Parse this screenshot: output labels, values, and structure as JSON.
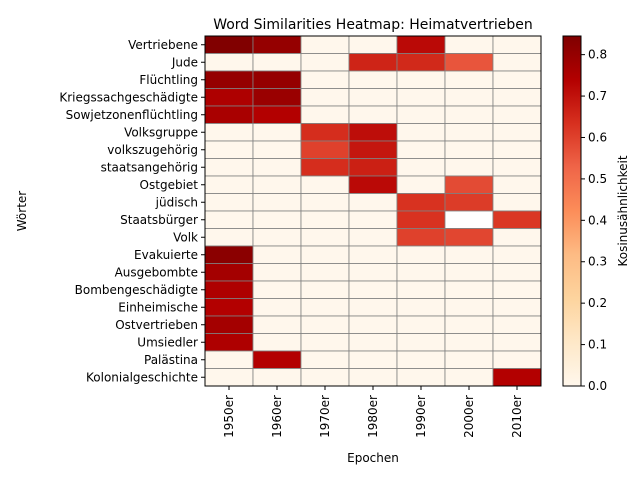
{
  "chart_data": {
    "type": "heatmap",
    "title": "Word Similarities Heatmap: Heimatvertrieben",
    "xlabel": "Epochen",
    "ylabel": "Wörter",
    "colorbar_label": "Kosinusähnlichkeit",
    "colormap": "OrRd",
    "vmin": 0.0,
    "vmax": 0.845,
    "colorbar_ticks": [
      "0.0",
      "0.1",
      "0.2",
      "0.3",
      "0.4",
      "0.5",
      "0.6",
      "0.7",
      "0.8"
    ],
    "x": [
      "1950er",
      "1960er",
      "1970er",
      "1980er",
      "1990er",
      "2000er",
      "2010er"
    ],
    "y": [
      "Vertriebene",
      "Jude",
      "Flüchtling",
      "Kriegssachgeschädigte",
      "Sowjetzonenflüchtling",
      "Volksgruppe",
      "volkszugehörig",
      "staatsangehörig",
      "Ostgebiet",
      "jüdisch",
      "Staatsbürger",
      "Volk",
      "Evakuierte",
      "Ausgebombte",
      "Bombengeschädigte",
      "Einheimische",
      "Ostvertrieben",
      "Umsiedler",
      "Palästina",
      "Kolonialgeschichte"
    ],
    "values": [
      [
        0.84,
        0.8,
        0.0,
        0.0,
        0.72,
        0.0,
        0.0
      ],
      [
        0.0,
        0.0,
        0.0,
        0.66,
        0.65,
        0.56,
        0.0
      ],
      [
        0.8,
        0.8,
        0.0,
        0.0,
        0.0,
        0.0,
        0.0
      ],
      [
        0.75,
        0.79,
        0.0,
        0.0,
        0.0,
        0.0,
        0.0
      ],
      [
        0.76,
        0.74,
        0.0,
        0.0,
        0.0,
        0.0,
        0.0
      ],
      [
        0.0,
        0.0,
        0.64,
        0.71,
        0.0,
        0.0,
        0.0
      ],
      [
        0.0,
        0.0,
        0.6,
        0.69,
        0.0,
        0.0,
        0.0
      ],
      [
        0.0,
        0.0,
        0.64,
        0.67,
        0.0,
        0.0,
        0.0
      ],
      [
        0.0,
        0.0,
        0.0,
        0.72,
        0.0,
        0.58,
        0.0
      ],
      [
        0.0,
        0.0,
        0.0,
        0.0,
        0.63,
        0.61,
        0.0
      ],
      [
        0.0,
        0.0,
        0.0,
        0.0,
        0.63,
        null,
        0.62
      ],
      [
        0.0,
        0.0,
        0.0,
        0.0,
        0.6,
        0.59,
        0.0
      ],
      [
        0.82,
        0.0,
        0.0,
        0.0,
        0.0,
        0.0,
        0.0
      ],
      [
        0.77,
        0.0,
        0.0,
        0.0,
        0.0,
        0.0,
        0.0
      ],
      [
        0.75,
        0.0,
        0.0,
        0.0,
        0.0,
        0.0,
        0.0
      ],
      [
        0.74,
        0.0,
        0.0,
        0.0,
        0.0,
        0.0,
        0.0
      ],
      [
        0.77,
        0.0,
        0.0,
        0.0,
        0.0,
        0.0,
        0.0
      ],
      [
        0.75,
        0.0,
        0.0,
        0.0,
        0.0,
        0.0,
        0.0
      ],
      [
        0.0,
        0.74,
        0.0,
        0.0,
        0.0,
        0.0,
        0.0
      ],
      [
        0.0,
        0.0,
        0.0,
        0.0,
        0.0,
        0.0,
        0.74
      ]
    ]
  }
}
